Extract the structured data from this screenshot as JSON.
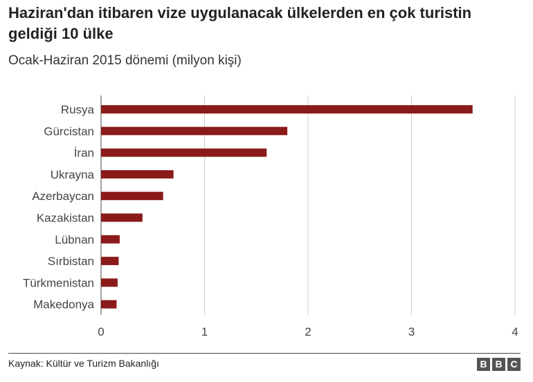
{
  "header": {
    "title": "Haziran'dan itibaren vize uygulanacak ülkelerden en çok turistin geldiği 10 ülke",
    "subtitle": "Ocak-Haziran 2015 dönemi (milyon kişi)"
  },
  "footer": {
    "source": "Kaynak: Kültür ve Turizm Bakanlığı",
    "logo": [
      "B",
      "B",
      "C"
    ]
  },
  "chart_data": {
    "type": "bar",
    "orientation": "horizontal",
    "title": "Haziran'dan itibaren vize uygulanacak ülkelerden en çok turistin geldiği 10 ülke",
    "subtitle": "Ocak-Haziran 2015 dönemi (milyon kişi)",
    "categories": [
      "Rusya",
      "Gürcistan",
      "İran",
      "Ukrayna",
      "Azerbaycan",
      "Kazakistan",
      "Lübnan",
      "Sırbistan",
      "Türkmenistan",
      "Makedonya"
    ],
    "values": [
      3.59,
      1.8,
      1.6,
      0.7,
      0.6,
      0.4,
      0.18,
      0.17,
      0.16,
      0.15
    ],
    "xlim": [
      0,
      4
    ],
    "xticks": [
      "0",
      "1",
      "2",
      "3",
      "4"
    ],
    "grid": true,
    "colors": {
      "bar": "#8b1a1a",
      "grid": "#cccccc",
      "axis": "#444444"
    }
  }
}
